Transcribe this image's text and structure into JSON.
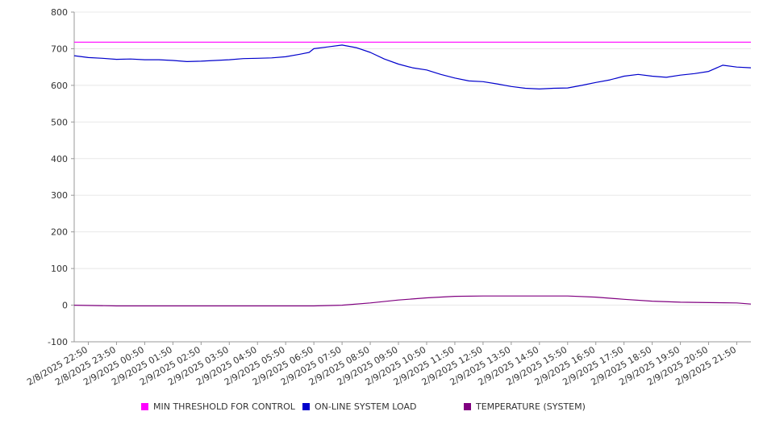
{
  "chart_data": {
    "type": "line",
    "title": "",
    "xlabel": "",
    "ylabel": "",
    "ylim": [
      -100,
      800
    ],
    "yticks": [
      -100,
      0,
      100,
      200,
      300,
      400,
      500,
      600,
      700,
      800
    ],
    "x_range": [
      "2/8/2025 22:20",
      "2/9/2025 22:20"
    ],
    "x_tick_labels": [
      "2/8/2025 22:50",
      "2/8/2025 23:50",
      "2/9/2025 00:50",
      "2/9/2025 01:50",
      "2/9/2025 02:50",
      "2/9/2025 03:50",
      "2/9/2025 04:50",
      "2/9/2025 05:50",
      "2/9/2025 06:50",
      "2/9/2025 07:50",
      "2/9/2025 08:50",
      "2/9/2025 09:50",
      "2/9/2025 10:50",
      "2/9/2025 11:50",
      "2/9/2025 12:50",
      "2/9/2025 13:50",
      "2/9/2025 14:50",
      "2/9/2025 15:50",
      "2/9/2025 16:50",
      "2/9/2025 17:50",
      "2/9/2025 18:50",
      "2/9/2025 19:50",
      "2/9/2025 20:50",
      "2/9/2025 21:50"
    ],
    "grid": true,
    "legend_position": "bottom",
    "series": [
      {
        "name": "MIN THRESHOLD FOR CONTROL",
        "color": "#ff00ff",
        "x": [
          "2/8/2025 22:20",
          "2/9/2025 22:20"
        ],
        "y": [
          718,
          718
        ]
      },
      {
        "name": "ON-LINE SYSTEM LOAD",
        "color": "#0000cc",
        "x": [
          "2/8/2025 22:20",
          "2/8/2025 22:50",
          "2/8/2025 23:20",
          "2/8/2025 23:50",
          "2/9/2025 00:20",
          "2/9/2025 00:50",
          "2/9/2025 01:20",
          "2/9/2025 01:50",
          "2/9/2025 02:20",
          "2/9/2025 02:50",
          "2/9/2025 03:20",
          "2/9/2025 03:50",
          "2/9/2025 04:20",
          "2/9/2025 04:50",
          "2/9/2025 05:20",
          "2/9/2025 05:50",
          "2/9/2025 06:20",
          "2/9/2025 06:40",
          "2/9/2025 06:50",
          "2/9/2025 07:20",
          "2/9/2025 07:50",
          "2/9/2025 08:20",
          "2/9/2025 08:50",
          "2/9/2025 09:20",
          "2/9/2025 09:50",
          "2/9/2025 10:20",
          "2/9/2025 10:50",
          "2/9/2025 11:20",
          "2/9/2025 11:50",
          "2/9/2025 12:20",
          "2/9/2025 12:50",
          "2/9/2025 13:20",
          "2/9/2025 13:50",
          "2/9/2025 14:20",
          "2/9/2025 14:50",
          "2/9/2025 15:20",
          "2/9/2025 15:50",
          "2/9/2025 16:20",
          "2/9/2025 16:50",
          "2/9/2025 17:20",
          "2/9/2025 17:50",
          "2/9/2025 18:20",
          "2/9/2025 18:50",
          "2/9/2025 19:20",
          "2/9/2025 19:50",
          "2/9/2025 20:20",
          "2/9/2025 20:50",
          "2/9/2025 21:20",
          "2/9/2025 21:50",
          "2/9/2025 22:20"
        ],
        "y": [
          681,
          676,
          674,
          671,
          672,
          670,
          670,
          668,
          665,
          666,
          668,
          670,
          673,
          674,
          675,
          678,
          685,
          690,
          700,
          705,
          710,
          703,
          690,
          672,
          658,
          648,
          642,
          630,
          620,
          612,
          610,
          604,
          597,
          592,
          590,
          592,
          593,
          600,
          608,
          615,
          625,
          630,
          625,
          622,
          628,
          632,
          638,
          655,
          650,
          648
        ]
      },
      {
        "name": "TEMPERATURE (SYSTEM)",
        "color": "#800080",
        "x": [
          "2/8/2025 22:20",
          "2/8/2025 23:50",
          "2/9/2025 01:50",
          "2/9/2025 03:50",
          "2/9/2025 05:50",
          "2/9/2025 06:50",
          "2/9/2025 07:50",
          "2/9/2025 08:50",
          "2/9/2025 09:50",
          "2/9/2025 10:50",
          "2/9/2025 11:50",
          "2/9/2025 12:50",
          "2/9/2025 13:50",
          "2/9/2025 14:50",
          "2/9/2025 15:50",
          "2/9/2025 16:50",
          "2/9/2025 17:50",
          "2/9/2025 18:50",
          "2/9/2025 19:50",
          "2/9/2025 20:50",
          "2/9/2025 21:50",
          "2/9/2025 22:20"
        ],
        "y": [
          0,
          -2,
          -2,
          -2,
          -2,
          -2,
          0,
          6,
          14,
          20,
          24,
          25,
          25,
          25,
          25,
          22,
          16,
          11,
          8,
          7,
          6,
          3
        ]
      }
    ]
  }
}
